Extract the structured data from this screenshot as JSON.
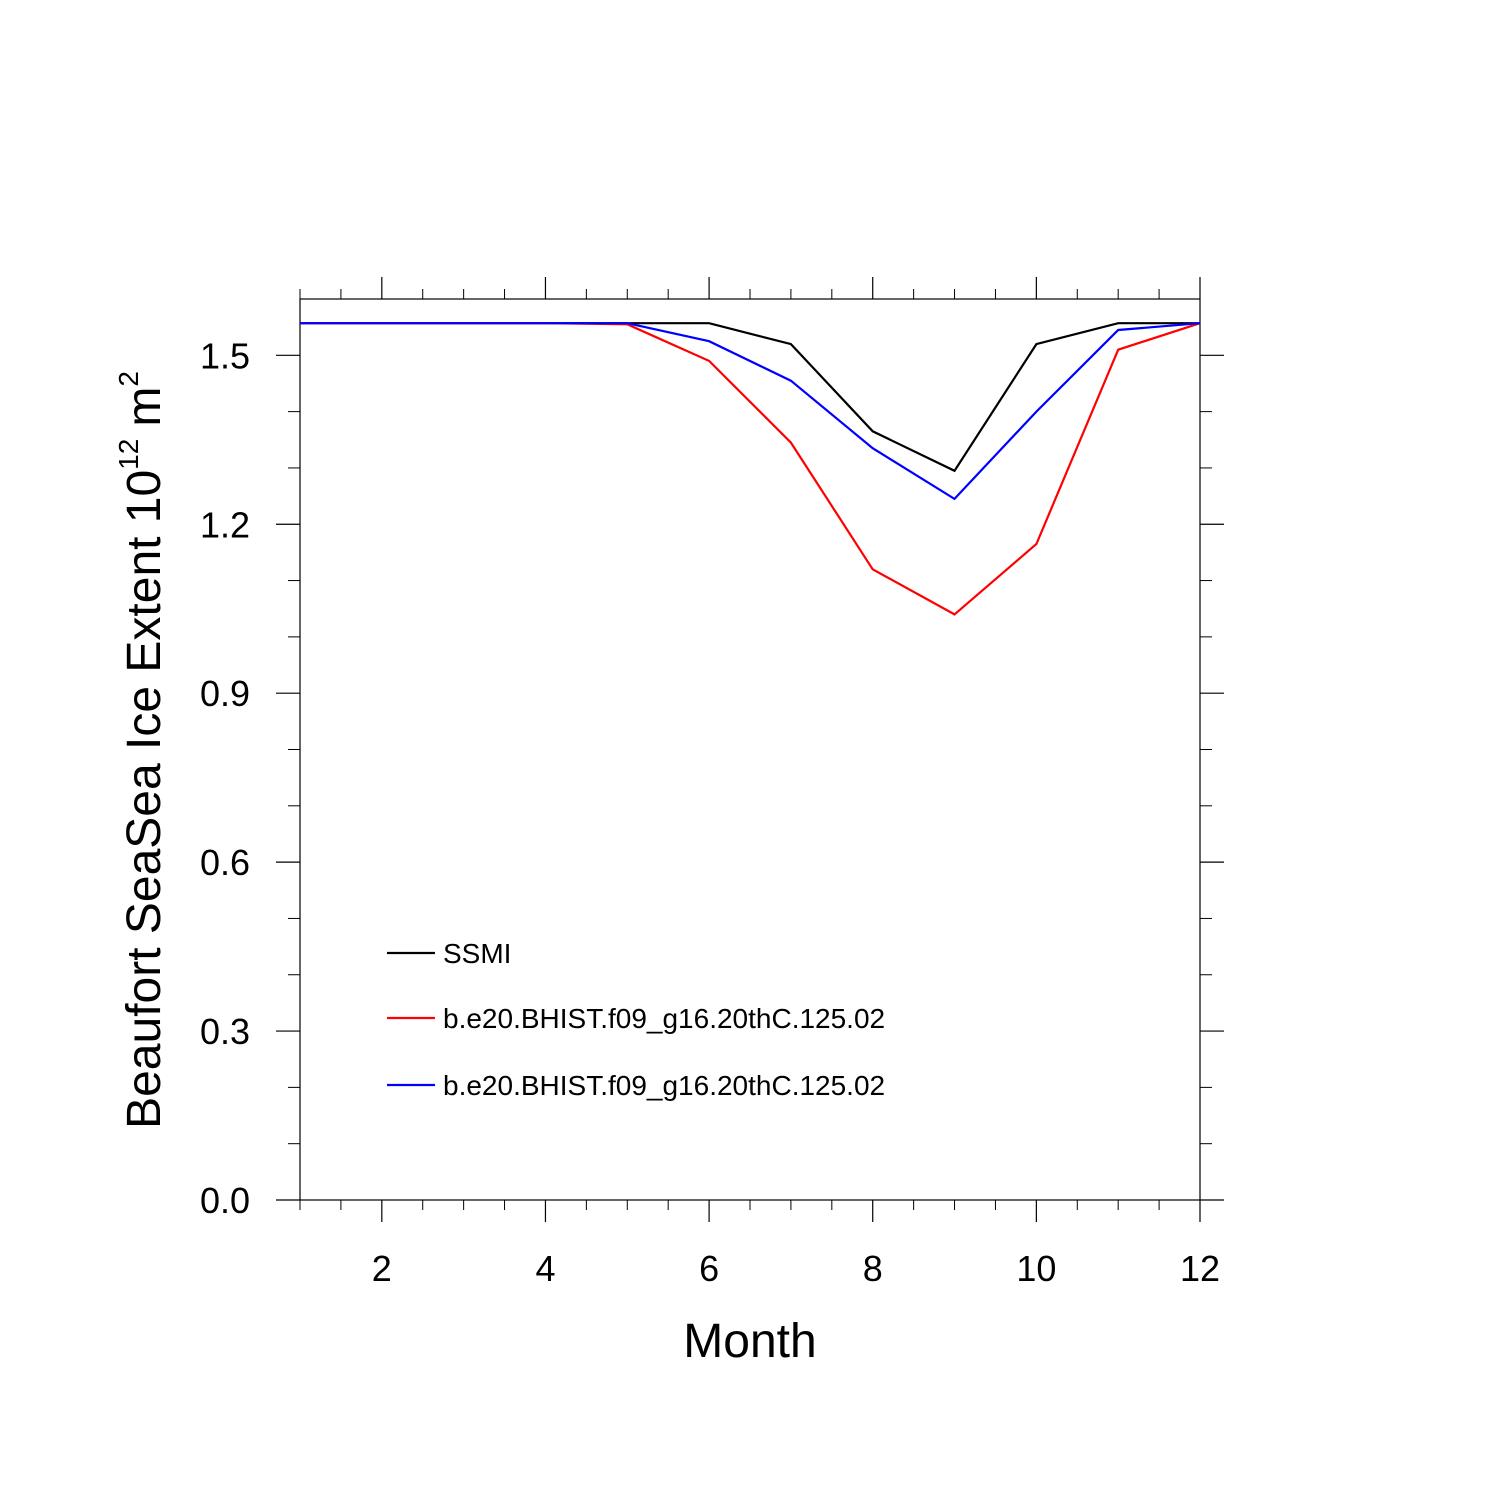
{
  "chart_data": {
    "type": "line",
    "title": "",
    "xlabel": "Month",
    "ylabel": {
      "text": "Beaufort SeaSea Ice Extent 10",
      "exponent": "12",
      "unit": "m",
      "unit_exponent": "2"
    },
    "xlim": [
      1,
      12
    ],
    "ylim": [
      0,
      1.6
    ],
    "x_ticks": [
      2,
      4,
      6,
      8,
      10,
      12
    ],
    "y_ticks": [
      "0.0",
      "0.3",
      "0.6",
      "0.9",
      "1.2",
      "1.5"
    ],
    "grid": false,
    "legend_position": "bottom-left",
    "x": [
      1,
      2,
      3,
      4,
      5,
      6,
      7,
      8,
      9,
      10,
      11,
      12
    ],
    "series": [
      {
        "name": "SSMI",
        "color": "#000000",
        "values": [
          1.557,
          1.557,
          1.557,
          1.557,
          1.557,
          1.557,
          1.52,
          1.365,
          1.295,
          1.52,
          1.557,
          1.557
        ]
      },
      {
        "name": "b.e20.BHIST.f09_g16.20thC.125.02",
        "color": "#ff0000",
        "values": [
          1.557,
          1.557,
          1.557,
          1.557,
          1.555,
          1.49,
          1.345,
          1.12,
          1.04,
          1.165,
          1.51,
          1.557
        ]
      },
      {
        "name": "b.e20.BHIST.f09_g16.20thC.125.02",
        "color": "#0000ff",
        "values": [
          1.557,
          1.557,
          1.557,
          1.557,
          1.557,
          1.525,
          1.455,
          1.335,
          1.245,
          1.4,
          1.545,
          1.557
        ]
      }
    ]
  }
}
